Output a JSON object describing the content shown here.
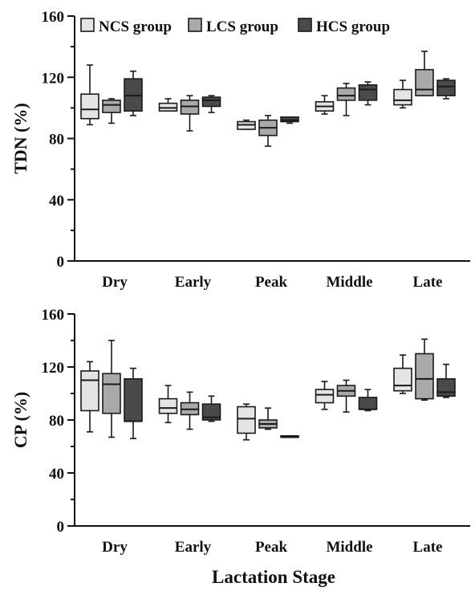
{
  "colors": {
    "NCS group": "#e4e4e4",
    "LCS group": "#a9a9a9",
    "HCS group": "#4a4a4a",
    "stroke": "#1a1a1a"
  },
  "legend": [
    "NCS group",
    "LCS group",
    "HCS group"
  ],
  "xlabel": "Lactation Stage",
  "chart_data": [
    {
      "type": "box",
      "ylabel": "TDN (%)",
      "ylim": [
        0,
        160
      ],
      "yticks": [
        0,
        40,
        80,
        120,
        160
      ],
      "categories": [
        "Dry",
        "Early",
        "Peak",
        "Middle",
        "Late"
      ],
      "series": [
        {
          "name": "NCS group",
          "boxes": [
            {
              "min": 89,
              "q1": 93,
              "median": 99,
              "q3": 109,
              "max": 128
            },
            {
              "min": 98,
              "q1": 98,
              "median": 100,
              "q3": 103,
              "max": 106
            },
            {
              "min": 86,
              "q1": 86,
              "median": 89,
              "q3": 91,
              "max": 92
            },
            {
              "min": 96,
              "q1": 98,
              "median": 101,
              "q3": 104,
              "max": 108
            },
            {
              "min": 100,
              "q1": 102,
              "median": 105,
              "q3": 112,
              "max": 118
            }
          ]
        },
        {
          "name": "LCS group",
          "boxes": [
            {
              "min": 90,
              "q1": 97,
              "median": 102,
              "q3": 105,
              "max": 106
            },
            {
              "min": 85,
              "q1": 96,
              "median": 101,
              "q3": 105,
              "max": 108
            },
            {
              "min": 75,
              "q1": 82,
              "median": 87,
              "q3": 92,
              "max": 95
            },
            {
              "min": 95,
              "q1": 105,
              "median": 108,
              "q3": 113,
              "max": 116
            },
            {
              "min": 108,
              "q1": 108,
              "median": 112,
              "q3": 125,
              "max": 137
            }
          ]
        },
        {
          "name": "HCS group",
          "boxes": [
            {
              "min": 95,
              "q1": 98,
              "median": 108,
              "q3": 119,
              "max": 124
            },
            {
              "min": 97,
              "q1": 101,
              "median": 105,
              "q3": 107,
              "max": 108
            },
            {
              "min": 90,
              "q1": 91,
              "median": 92,
              "q3": 94,
              "max": 94
            },
            {
              "min": 102,
              "q1": 105,
              "median": 112,
              "q3": 115,
              "max": 117
            },
            {
              "min": 106,
              "q1": 108,
              "median": 114,
              "q3": 118,
              "max": 119
            }
          ]
        }
      ]
    },
    {
      "type": "box",
      "ylabel": "CP (%)",
      "ylim": [
        0,
        160
      ],
      "yticks": [
        0,
        40,
        80,
        120,
        160
      ],
      "categories": [
        "Dry",
        "Early",
        "Peak",
        "Middle",
        "Late"
      ],
      "series": [
        {
          "name": "NCS group",
          "boxes": [
            {
              "min": 71,
              "q1": 87,
              "median": 110,
              "q3": 117,
              "max": 124
            },
            {
              "min": 78,
              "q1": 85,
              "median": 89,
              "q3": 96,
              "max": 106
            },
            {
              "min": 65,
              "q1": 70,
              "median": 81,
              "q3": 90,
              "max": 92
            },
            {
              "min": 88,
              "q1": 93,
              "median": 99,
              "q3": 103,
              "max": 109
            },
            {
              "min": 100,
              "q1": 102,
              "median": 106,
              "q3": 119,
              "max": 129
            }
          ]
        },
        {
          "name": "LCS group",
          "boxes": [
            {
              "min": 67,
              "q1": 85,
              "median": 107,
              "q3": 115,
              "max": 140
            },
            {
              "min": 73,
              "q1": 84,
              "median": 88,
              "q3": 93,
              "max": 101
            },
            {
              "min": 73,
              "q1": 74,
              "median": 77,
              "q3": 80,
              "max": 89
            },
            {
              "min": 86,
              "q1": 98,
              "median": 102,
              "q3": 106,
              "max": 110
            },
            {
              "min": 95,
              "q1": 96,
              "median": 111,
              "q3": 130,
              "max": 141
            }
          ]
        },
        {
          "name": "HCS group",
          "boxes": [
            {
              "min": 66,
              "q1": 79,
              "median": 79,
              "q3": 111,
              "max": 119
            },
            {
              "min": 79,
              "q1": 80,
              "median": 82,
              "q3": 92,
              "max": 98
            },
            {
              "min": 67,
              "q1": 67,
              "median": 67,
              "q3": 68,
              "max": 68
            },
            {
              "min": 87,
              "q1": 88,
              "median": 88,
              "q3": 97,
              "max": 103
            },
            {
              "min": 97,
              "q1": 98,
              "median": 101,
              "q3": 111,
              "max": 122
            }
          ]
        }
      ]
    }
  ]
}
